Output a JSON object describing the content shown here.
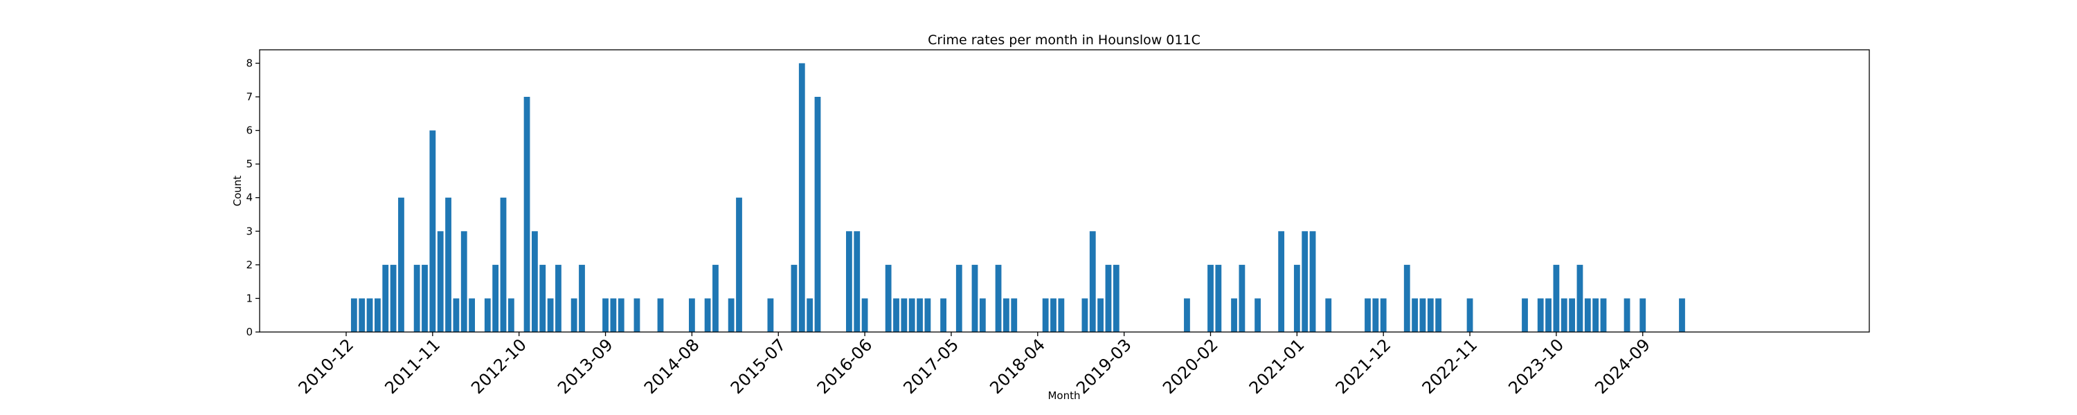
{
  "chart_data": {
    "type": "bar",
    "title": "Crime rates per month in Hounslow 011C",
    "xlabel": "Month",
    "ylabel": "Count",
    "ylim": [
      0,
      8.4
    ],
    "yticks": [
      0,
      1,
      2,
      3,
      4,
      5,
      6,
      7,
      8
    ],
    "xticks": [
      "2010-12",
      "2011-11",
      "2012-10",
      "2013-09",
      "2014-08",
      "2015-07",
      "2016-06",
      "2017-05",
      "2018-04",
      "2019-03",
      "2020-02",
      "2021-01",
      "2021-12",
      "2022-11",
      "2023-10",
      "2024-09"
    ],
    "bar_color": "#1f77b4",
    "grid": false,
    "points": [
      {
        "x": "2011-01",
        "y": 1
      },
      {
        "x": "2011-02",
        "y": 1
      },
      {
        "x": "2011-03",
        "y": 1
      },
      {
        "x": "2011-04",
        "y": 1
      },
      {
        "x": "2011-05",
        "y": 2
      },
      {
        "x": "2011-06",
        "y": 2
      },
      {
        "x": "2011-07",
        "y": 4
      },
      {
        "x": "2011-09",
        "y": 2
      },
      {
        "x": "2011-10",
        "y": 2
      },
      {
        "x": "2011-11",
        "y": 6
      },
      {
        "x": "2011-12",
        "y": 3
      },
      {
        "x": "2012-01",
        "y": 4
      },
      {
        "x": "2012-02",
        "y": 1
      },
      {
        "x": "2012-03",
        "y": 3
      },
      {
        "x": "2012-04",
        "y": 1
      },
      {
        "x": "2012-06",
        "y": 1
      },
      {
        "x": "2012-07",
        "y": 2
      },
      {
        "x": "2012-08",
        "y": 4
      },
      {
        "x": "2012-09",
        "y": 1
      },
      {
        "x": "2012-11",
        "y": 7
      },
      {
        "x": "2012-12",
        "y": 3
      },
      {
        "x": "2013-01",
        "y": 2
      },
      {
        "x": "2013-02",
        "y": 1
      },
      {
        "x": "2013-03",
        "y": 2
      },
      {
        "x": "2013-05",
        "y": 1
      },
      {
        "x": "2013-06",
        "y": 2
      },
      {
        "x": "2013-09",
        "y": 1
      },
      {
        "x": "2013-10",
        "y": 1
      },
      {
        "x": "2013-11",
        "y": 1
      },
      {
        "x": "2014-01",
        "y": 1
      },
      {
        "x": "2014-04",
        "y": 1
      },
      {
        "x": "2014-08",
        "y": 1
      },
      {
        "x": "2014-10",
        "y": 1
      },
      {
        "x": "2014-11",
        "y": 2
      },
      {
        "x": "2015-01",
        "y": 1
      },
      {
        "x": "2015-02",
        "y": 4
      },
      {
        "x": "2015-06",
        "y": 1
      },
      {
        "x": "2015-09",
        "y": 2
      },
      {
        "x": "2015-10",
        "y": 8
      },
      {
        "x": "2015-11",
        "y": 1
      },
      {
        "x": "2015-12",
        "y": 7
      },
      {
        "x": "2016-04",
        "y": 3
      },
      {
        "x": "2016-05",
        "y": 3
      },
      {
        "x": "2016-06",
        "y": 1
      },
      {
        "x": "2016-09",
        "y": 2
      },
      {
        "x": "2016-10",
        "y": 1
      },
      {
        "x": "2016-11",
        "y": 1
      },
      {
        "x": "2016-12",
        "y": 1
      },
      {
        "x": "2017-01",
        "y": 1
      },
      {
        "x": "2017-02",
        "y": 1
      },
      {
        "x": "2017-04",
        "y": 1
      },
      {
        "x": "2017-06",
        "y": 2
      },
      {
        "x": "2017-08",
        "y": 2
      },
      {
        "x": "2017-09",
        "y": 1
      },
      {
        "x": "2017-11",
        "y": 2
      },
      {
        "x": "2017-12",
        "y": 1
      },
      {
        "x": "2018-01",
        "y": 1
      },
      {
        "x": "2018-05",
        "y": 1
      },
      {
        "x": "2018-06",
        "y": 1
      },
      {
        "x": "2018-07",
        "y": 1
      },
      {
        "x": "2018-10",
        "y": 1
      },
      {
        "x": "2018-11",
        "y": 3
      },
      {
        "x": "2018-12",
        "y": 1
      },
      {
        "x": "2019-01",
        "y": 2
      },
      {
        "x": "2019-02",
        "y": 2
      },
      {
        "x": "2019-11",
        "y": 1
      },
      {
        "x": "2020-02",
        "y": 2
      },
      {
        "x": "2020-03",
        "y": 2
      },
      {
        "x": "2020-05",
        "y": 1
      },
      {
        "x": "2020-06",
        "y": 2
      },
      {
        "x": "2020-08",
        "y": 1
      },
      {
        "x": "2020-11",
        "y": 3
      },
      {
        "x": "2021-01",
        "y": 2
      },
      {
        "x": "2021-02",
        "y": 3
      },
      {
        "x": "2021-03",
        "y": 3
      },
      {
        "x": "2021-05",
        "y": 1
      },
      {
        "x": "2021-10",
        "y": 1
      },
      {
        "x": "2021-11",
        "y": 1
      },
      {
        "x": "2021-12",
        "y": 1
      },
      {
        "x": "2022-03",
        "y": 2
      },
      {
        "x": "2022-04",
        "y": 1
      },
      {
        "x": "2022-05",
        "y": 1
      },
      {
        "x": "2022-06",
        "y": 1
      },
      {
        "x": "2022-07",
        "y": 1
      },
      {
        "x": "2022-11",
        "y": 1
      },
      {
        "x": "2023-06",
        "y": 1
      },
      {
        "x": "2023-08",
        "y": 1
      },
      {
        "x": "2023-09",
        "y": 1
      },
      {
        "x": "2023-10",
        "y": 2
      },
      {
        "x": "2023-11",
        "y": 1
      },
      {
        "x": "2023-12",
        "y": 1
      },
      {
        "x": "2024-01",
        "y": 2
      },
      {
        "x": "2024-02",
        "y": 1
      },
      {
        "x": "2024-03",
        "y": 1
      },
      {
        "x": "2024-04",
        "y": 1
      },
      {
        "x": "2024-07",
        "y": 1
      },
      {
        "x": "2024-09",
        "y": 1
      },
      {
        "x": "2025-02",
        "y": 1
      }
    ]
  }
}
